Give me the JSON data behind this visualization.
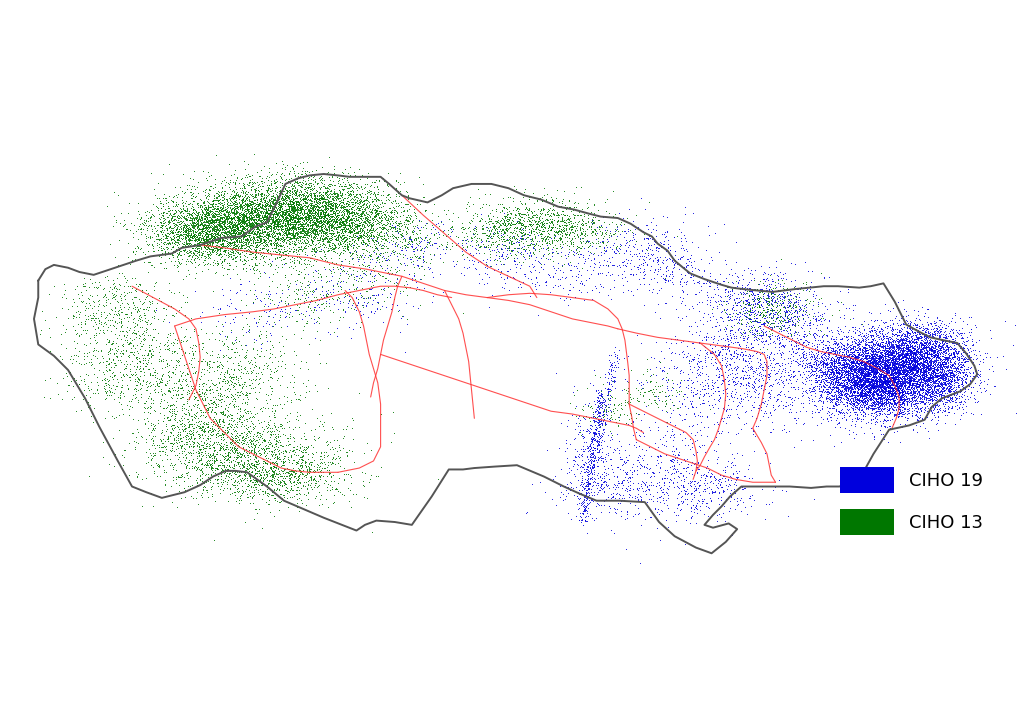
{
  "background_color": "#ffffff",
  "outer_boundary_color": "#555555",
  "inner_boundary_color": "#ff3030",
  "chs19_color": "#0000dd",
  "chs13_color": "#007700",
  "legend_labels": [
    "CIHO 19",
    "CIHO 13"
  ],
  "legend_colors": [
    "#0000dd",
    "#007700"
  ],
  "legend_fontsize": 13,
  "figsize": [
    10.24,
    7.23
  ],
  "dpi": 100
}
